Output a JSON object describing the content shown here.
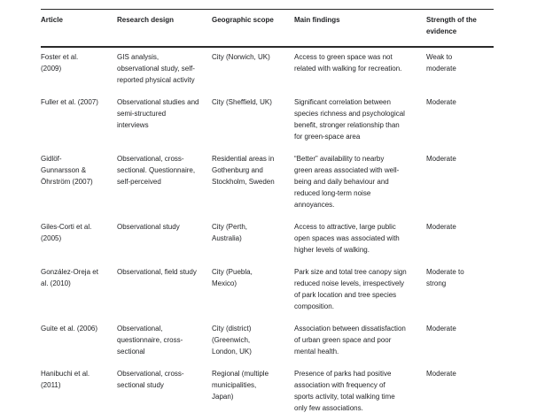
{
  "table": {
    "columns": [
      "Article",
      "Research design",
      "Geographic scope",
      "Main findings",
      "Strength of the\nevidence"
    ],
    "rows": [
      {
        "article": "Foster et al.\n(2009)",
        "research_design": "GIS analysis,\nobservational study, self-\nreported physical activity",
        "geographic_scope": "City (Norwich, UK)",
        "main_findings": "Access to green space was not\nrelated with walking for recreation.",
        "strength": "Weak to\nmoderate"
      },
      {
        "article": "Fuller et al. (2007)",
        "research_design": "Observational studies and\nsemi-structured\ninterviews",
        "geographic_scope": "City (Sheffield, UK)",
        "main_findings": "Significant correlation between\nspecies richness and psychological\nbenefit, stronger relationship than\nfor green-space area",
        "strength": "Moderate"
      },
      {
        "article": "Gidlöf-\nGunnarsson &\nÖhrström (2007)",
        "research_design": "Observational, cross-\nsectional. Questionnaire,\nself-perceived",
        "geographic_scope": "Residential areas in\nGothenburg and\nStockholm, Sweden",
        "main_findings": "“Better” availability to nearby\ngreen areas associated with well-\nbeing and daily behaviour and\nreduced long-term noise\nannoyances.",
        "strength": "Moderate"
      },
      {
        "article": "Giles-Corti et al.\n(2005)",
        "research_design": "Observational study",
        "geographic_scope": "City (Perth,\nAustralia)",
        "main_findings": "Access to attractive, large public\nopen spaces was associated with\nhigher levels of walking.",
        "strength": "Moderate"
      },
      {
        "article": "González-Oreja et\nal. (2010)",
        "research_design": "Observational, field study",
        "geographic_scope": "City (Puebla,\nMexico)",
        "main_findings": "Park size and total tree canopy sign\nreduced noise levels, irrespectively\nof park location and tree species\ncomposition.",
        "strength": "Moderate to\nstrong"
      },
      {
        "article": "Guite et al. (2006)",
        "research_design": "Observational,\nquestionnaire, cross-\nsectional",
        "geographic_scope": "City (district)\n(Greenwich,\nLondon, UK)",
        "main_findings": "Association between dissatisfaction\nof urban green space and poor\nmental health.",
        "strength": "Moderate"
      },
      {
        "article": "Hanibuchi et al.\n(2011)",
        "research_design": "Observational, cross-\nsectional study",
        "geographic_scope": "Regional (multiple\nmunicipalities,\nJapan)",
        "main_findings": "Presence of parks had positive\nassociation with frequency of\nsports activity, total walking time\nonly few associations.",
        "strength": "Moderate"
      }
    ]
  }
}
